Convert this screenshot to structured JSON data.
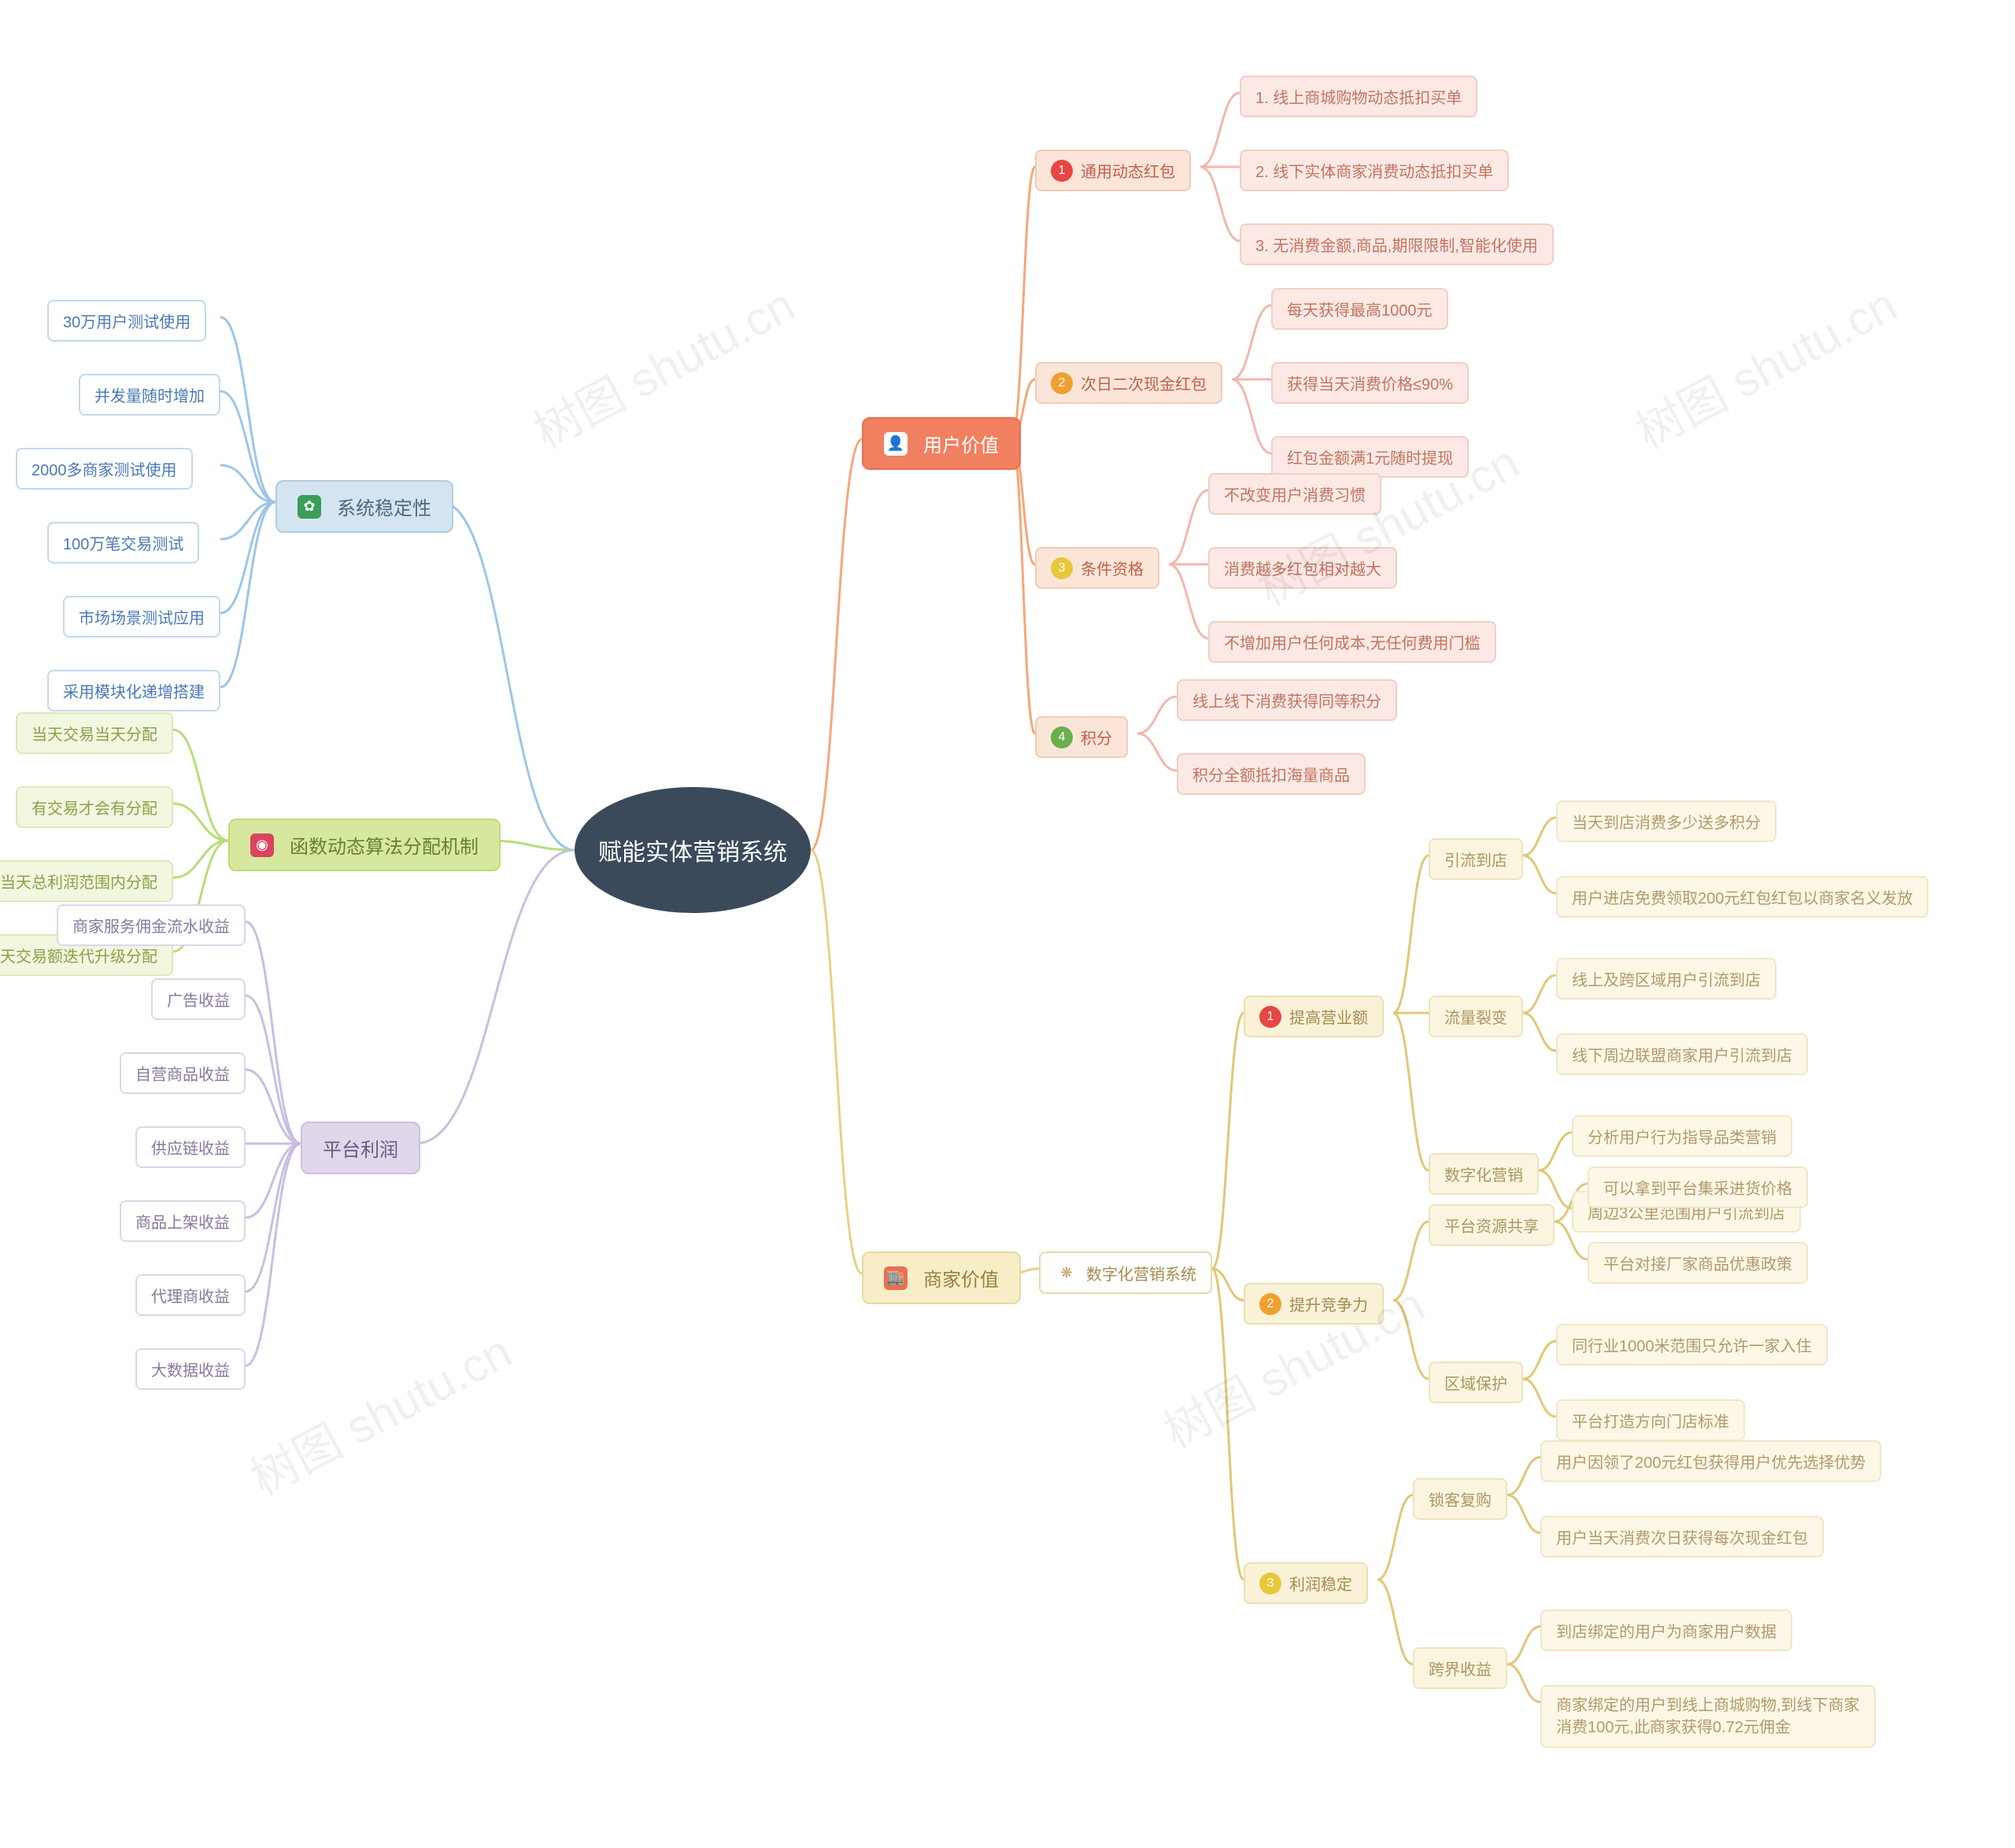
{
  "type": "mindmap",
  "watermark_text": "树图 shutu.cn",
  "root": {
    "label": "赋能实体营销系统",
    "bg": "#3a4a5a",
    "fg": "#ffffff"
  },
  "colors": {
    "edge_blue": "#9ec5e8",
    "edge_green": "#b8dd7a",
    "edge_purple": "#c9bfe0",
    "edge_orange": "#f5a77a",
    "edge_yellow": "#e8d088",
    "edge_red": "#e37a7a",
    "edge_pink": "#f0b8b0",
    "edge_amber": "#e0c878"
  },
  "left": [
    {
      "id": "stability",
      "label": "系统稳定性",
      "bg": "#d4e4f0",
      "fg": "#4a6a85",
      "border": "#b0cde0",
      "icon": "gear-icon",
      "icon_bg": "#3b9e5a",
      "icon_fg": "#ffffff",
      "icon_char": "✿",
      "edge": "#9ec5e8",
      "children": [
        {
          "label": "30万用户测试使用",
          "bg": "#ffffff",
          "fg": "#4a7ab5",
          "border": "#c3d9ed"
        },
        {
          "label": "并发量随时增加",
          "bg": "#ffffff",
          "fg": "#4a7ab5",
          "border": "#c3d9ed"
        },
        {
          "label": "2000多商家测试使用",
          "bg": "#ffffff",
          "fg": "#4a7ab5",
          "border": "#c3d9ed"
        },
        {
          "label": "100万笔交易测试",
          "bg": "#ffffff",
          "fg": "#4a7ab5",
          "border": "#c3d9ed"
        },
        {
          "label": "市场场景测试应用",
          "bg": "#ffffff",
          "fg": "#4a7ab5",
          "border": "#c3d9ed"
        },
        {
          "label": "采用模块化递增搭建",
          "bg": "#ffffff",
          "fg": "#4a7ab5",
          "border": "#c3d9ed"
        }
      ]
    },
    {
      "id": "algorithm",
      "label": "函数动态算法分配机制",
      "bg": "#d6e89e",
      "fg": "#6a8030",
      "border": "#c0d878",
      "icon": "chart-icon",
      "icon_bg": "#d94560",
      "icon_fg": "#ffffff",
      "icon_char": "◉",
      "edge": "#b8dd7a",
      "children": [
        {
          "label": "当天交易当天分配",
          "bg": "#f2f7e0",
          "fg": "#8aa048",
          "border": "#dde8b8"
        },
        {
          "label": "有交易才会有分配",
          "bg": "#f2f7e0",
          "fg": "#8aa048",
          "border": "#dde8b8"
        },
        {
          "label": "当天总利润范围内分配",
          "bg": "#f2f7e0",
          "fg": "#8aa048",
          "border": "#dde8b8"
        },
        {
          "label": "算法根据每天交易额迭代升级分配",
          "bg": "#f2f7e0",
          "fg": "#8aa048",
          "border": "#dde8b8"
        }
      ]
    },
    {
      "id": "profit",
      "label": "平台利润",
      "bg": "#e0d8ea",
      "fg": "#6a5a85",
      "border": "#cec0e0",
      "edge": "#c9bfe0",
      "children": [
        {
          "label": "商家服务佣金流水收益",
          "bg": "#ffffff",
          "fg": "#8878a0",
          "border": "#ded5ea"
        },
        {
          "label": "广告收益",
          "bg": "#ffffff",
          "fg": "#8878a0",
          "border": "#ded5ea"
        },
        {
          "label": "自营商品收益",
          "bg": "#ffffff",
          "fg": "#8878a0",
          "border": "#ded5ea"
        },
        {
          "label": "供应链收益",
          "bg": "#ffffff",
          "fg": "#8878a0",
          "border": "#ded5ea"
        },
        {
          "label": "商品上架收益",
          "bg": "#ffffff",
          "fg": "#8878a0",
          "border": "#ded5ea"
        },
        {
          "label": "代理商收益",
          "bg": "#ffffff",
          "fg": "#8878a0",
          "border": "#ded5ea"
        },
        {
          "label": "大数据收益",
          "bg": "#ffffff",
          "fg": "#8878a0",
          "border": "#ded5ea"
        }
      ]
    }
  ],
  "right": [
    {
      "id": "user_value",
      "label": "用户价值",
      "bg": "#f08060",
      "fg": "#ffffff",
      "border": "#e87050",
      "icon": "user-icon",
      "icon_bg": "#ffffff",
      "icon_fg": "#5a7ac5",
      "icon_char": "👤",
      "edge": "#f5a77a",
      "children": [
        {
          "badge": "1",
          "badge_bg": "#e84545",
          "label": "通用动态红包",
          "bg": "#fbe5d8",
          "fg": "#c0604a",
          "border": "#f0ccb8",
          "edge": "#f0b8b0",
          "children": [
            {
              "label": "1. 线上商城购物动态抵扣买单",
              "bg": "#fce8e4",
              "fg": "#c07560",
              "border": "#f0cfc5"
            },
            {
              "label": "2. 线下实体商家消费动态抵扣买单",
              "bg": "#fce8e4",
              "fg": "#c07560",
              "border": "#f0cfc5"
            },
            {
              "label": "3. 无消费金额,商品,期限限制,智能化使用",
              "bg": "#fce8e4",
              "fg": "#c07560",
              "border": "#f0cfc5"
            }
          ]
        },
        {
          "badge": "2",
          "badge_bg": "#f0a030",
          "label": "次日二次现金红包",
          "bg": "#fbe5d8",
          "fg": "#c0604a",
          "border": "#f0ccb8",
          "edge": "#f0b8b0",
          "children": [
            {
              "label": "每天获得最高1000元",
              "bg": "#fce8e4",
              "fg": "#c07560",
              "border": "#f0cfc5"
            },
            {
              "label": "获得当天消费价格≤90%",
              "bg": "#fce8e4",
              "fg": "#c07560",
              "border": "#f0cfc5"
            },
            {
              "label": "红包金额满1元随时提现",
              "bg": "#fce8e4",
              "fg": "#c07560",
              "border": "#f0cfc5"
            }
          ]
        },
        {
          "badge": "3",
          "badge_bg": "#e8c838",
          "label": "条件资格",
          "bg": "#fbe5d8",
          "fg": "#c0604a",
          "border": "#f0ccb8",
          "edge": "#f0b8b0",
          "children": [
            {
              "label": "不改变用户消费习惯",
              "bg": "#fce8e4",
              "fg": "#c07560",
              "border": "#f0cfc5"
            },
            {
              "label": "消费越多红包相对越大",
              "bg": "#fce8e4",
              "fg": "#c07560",
              "border": "#f0cfc5"
            },
            {
              "label": "不增加用户任何成本,无任何费用门槛",
              "bg": "#fce8e4",
              "fg": "#c07560",
              "border": "#f0cfc5"
            }
          ]
        },
        {
          "badge": "4",
          "badge_bg": "#6ab04c",
          "label": "积分",
          "bg": "#fbe5d8",
          "fg": "#c0604a",
          "border": "#f0ccb8",
          "edge": "#f0b8b0",
          "children": [
            {
              "label": "线上线下消费获得同等积分",
              "bg": "#fce8e4",
              "fg": "#c07560",
              "border": "#f0cfc5"
            },
            {
              "label": "积分全额抵扣海量商品",
              "bg": "#fce8e4",
              "fg": "#c07560",
              "border": "#f0cfc5"
            }
          ]
        }
      ]
    },
    {
      "id": "merchant_value",
      "label": "商家价值",
      "bg": "#f7eec8",
      "fg": "#9a8040",
      "border": "#e8daa0",
      "icon": "shop-icon",
      "icon_bg": "#e87050",
      "icon_fg": "#ffffff",
      "icon_char": "🏬",
      "edge": "#e8d088",
      "children": [
        {
          "label": "数字化营销系统",
          "bg": "#ffffff",
          "fg": "#a68a50",
          "border": "#e8daa8",
          "icon": "flower-icon",
          "icon_char": "❋",
          "icon_fg": "#c0a060",
          "edge": "#e0c878",
          "children": [
            {
              "badge": "1",
              "badge_bg": "#e84545",
              "label": "提高营业额",
              "bg": "#faf2d8",
              "fg": "#a68a50",
              "border": "#ece0b0",
              "edge": "#e0c878",
              "children": [
                {
                  "label": "引流到店",
                  "bg": "#fbf5e0",
                  "fg": "#ad9560",
                  "border": "#eee3bc",
                  "edge": "#e0c878",
                  "children": [
                    {
                      "label": "当天到店消费多少送多积分",
                      "bg": "#fcf7e6",
                      "fg": "#b09a6a",
                      "border": "#f0e7c6"
                    },
                    {
                      "label": "用户进店免费领取200元红包红包以商家名义发放",
                      "bg": "#fcf7e6",
                      "fg": "#b09a6a",
                      "border": "#f0e7c6"
                    }
                  ]
                },
                {
                  "label": "流量裂变",
                  "bg": "#fbf5e0",
                  "fg": "#ad9560",
                  "border": "#eee3bc",
                  "edge": "#e0c878",
                  "children": [
                    {
                      "label": "线上及跨区域用户引流到店",
                      "bg": "#fcf7e6",
                      "fg": "#b09a6a",
                      "border": "#f0e7c6"
                    },
                    {
                      "label": "线下周边联盟商家用户引流到店",
                      "bg": "#fcf7e6",
                      "fg": "#b09a6a",
                      "border": "#f0e7c6"
                    }
                  ]
                },
                {
                  "label": "数字化营销",
                  "bg": "#fbf5e0",
                  "fg": "#ad9560",
                  "border": "#eee3bc",
                  "edge": "#e0c878",
                  "children": [
                    {
                      "label": "分析用户行为指导品类营销",
                      "bg": "#fcf7e6",
                      "fg": "#b09a6a",
                      "border": "#f0e7c6"
                    },
                    {
                      "label": "周边3公里范围用户引流到店",
                      "bg": "#fcf7e6",
                      "fg": "#b09a6a",
                      "border": "#f0e7c6"
                    }
                  ]
                }
              ]
            },
            {
              "badge": "2",
              "badge_bg": "#f0a030",
              "label": "提升竞争力",
              "bg": "#faf2d8",
              "fg": "#a68a50",
              "border": "#ece0b0",
              "edge": "#e0c878",
              "children": [
                {
                  "label": "平台资源共享",
                  "bg": "#fbf5e0",
                  "fg": "#ad9560",
                  "border": "#eee3bc",
                  "edge": "#e0c878",
                  "children": [
                    {
                      "label": "可以拿到平台集采进货价格",
                      "bg": "#fcf7e6",
                      "fg": "#b09a6a",
                      "border": "#f0e7c6"
                    },
                    {
                      "label": "平台对接厂家商品优惠政策",
                      "bg": "#fcf7e6",
                      "fg": "#b09a6a",
                      "border": "#f0e7c6"
                    }
                  ]
                },
                {
                  "label": "区域保护",
                  "bg": "#fbf5e0",
                  "fg": "#ad9560",
                  "border": "#eee3bc",
                  "edge": "#e0c878",
                  "children": [
                    {
                      "label": "同行业1000米范围只允许一家入住",
                      "bg": "#fcf7e6",
                      "fg": "#b09a6a",
                      "border": "#f0e7c6"
                    },
                    {
                      "label": "平台打造方向门店标准",
                      "bg": "#fcf7e6",
                      "fg": "#b09a6a",
                      "border": "#f0e7c6"
                    }
                  ]
                }
              ]
            },
            {
              "badge": "3",
              "badge_bg": "#e8c838",
              "label": "利润稳定",
              "bg": "#faf2d8",
              "fg": "#a68a50",
              "border": "#ece0b0",
              "edge": "#e0c878",
              "children": [
                {
                  "label": "锁客复购",
                  "bg": "#fbf5e0",
                  "fg": "#ad9560",
                  "border": "#eee3bc",
                  "edge": "#e0c878",
                  "children": [
                    {
                      "label": "用户因领了200元红包获得用户优先选择优势",
                      "bg": "#fcf7e6",
                      "fg": "#b09a6a",
                      "border": "#f0e7c6"
                    },
                    {
                      "label": "用户当天消费次日获得每次现金红包",
                      "bg": "#fcf7e6",
                      "fg": "#b09a6a",
                      "border": "#f0e7c6"
                    }
                  ]
                },
                {
                  "label": "跨界收益",
                  "bg": "#fbf5e0",
                  "fg": "#ad9560",
                  "border": "#eee3bc",
                  "edge": "#e0c878",
                  "children": [
                    {
                      "label": "到店绑定的用户为商家用户数据",
                      "bg": "#fcf7e6",
                      "fg": "#b09a6a",
                      "border": "#f0e7c6"
                    },
                    {
                      "label": "商家绑定的用户到线上商城购物,到线下商家\n消费100元,此商家获得0.72元佣金",
                      "bg": "#fcf7e6",
                      "fg": "#b09a6a",
                      "border": "#f0e7c6",
                      "multiline": true
                    }
                  ]
                }
              ]
            }
          ]
        }
      ]
    }
  ]
}
